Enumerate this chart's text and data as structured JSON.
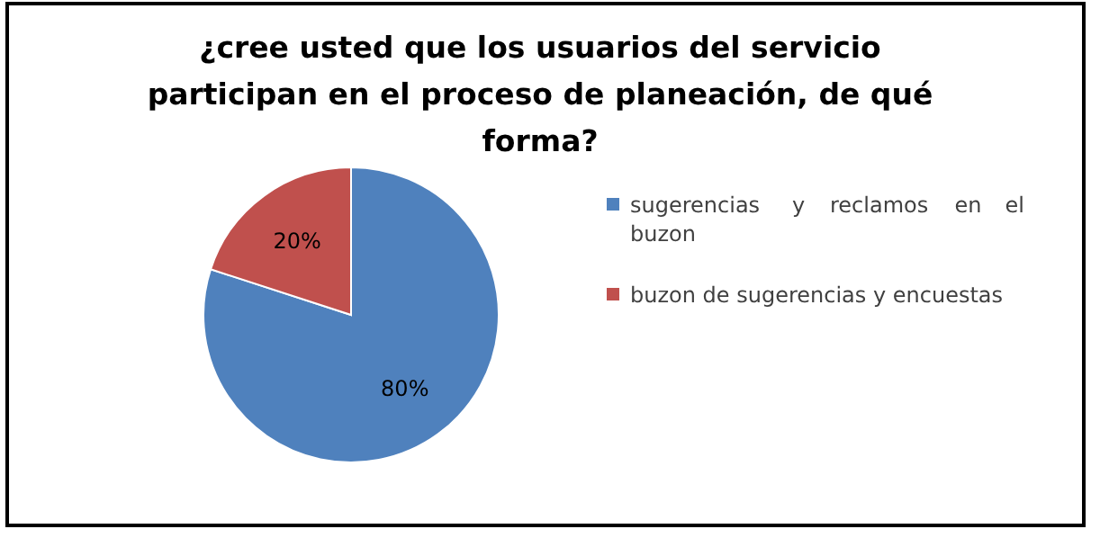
{
  "chart_data": {
    "type": "pie",
    "title": "¿cree usted que los usuarios del servicio participan en el proceso de planeación, de qué forma?",
    "categories": [
      "sugerencias y reclamos en el buzon",
      "buzon de sugerencias y encuestas"
    ],
    "values": [
      80,
      20
    ],
    "colors": [
      "#4f81bd",
      "#c0504d"
    ],
    "value_labels": [
      "80%",
      "20%"
    ],
    "legend": "right"
  }
}
